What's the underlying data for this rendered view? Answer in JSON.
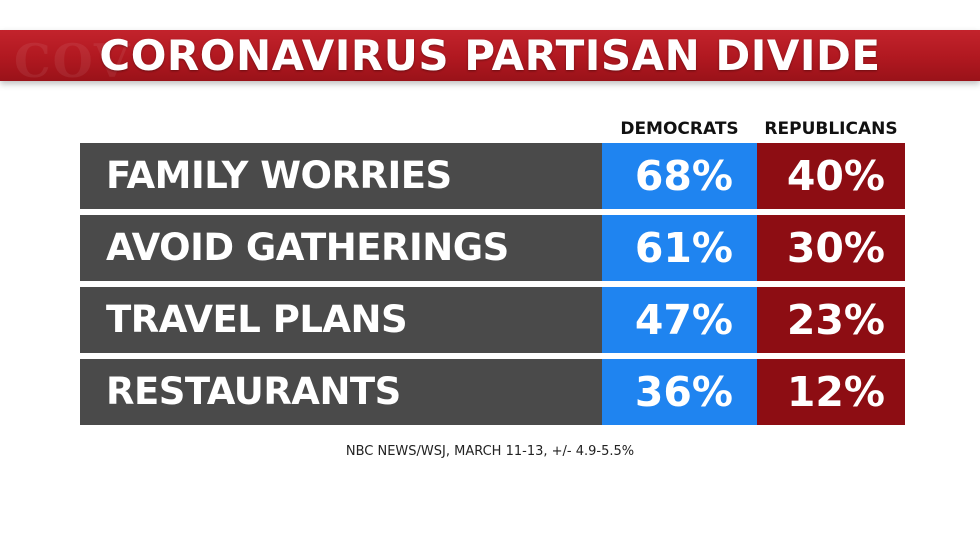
{
  "title": "CORONAVIRUS PARTISAN DIVIDE",
  "banner_ghost": "COV",
  "source": "NBC NEWS/WSJ, MARCH 11-13, +/- 4.9-5.5%",
  "colors": {
    "banner": "#b01820",
    "democrats": "#1f84f0",
    "republicans": "#8d0d13",
    "label_bg": "#4a4a4a"
  },
  "chart_data": {
    "type": "table",
    "title": "CORONAVIRUS PARTISAN DIVIDE",
    "columns": [
      "DEMOCRATS",
      "REPUBLICANS"
    ],
    "rows": [
      {
        "label": "FAMILY WORRIES",
        "democrats": "68%",
        "republicans": "40%"
      },
      {
        "label": "AVOID GATHERINGS",
        "democrats": "61%",
        "republicans": "30%"
      },
      {
        "label": "TRAVEL PLANS",
        "democrats": "47%",
        "republicans": "23%"
      },
      {
        "label": "RESTAURANTS",
        "democrats": "36%",
        "republicans": "12%"
      }
    ],
    "series": [
      {
        "name": "DEMOCRATS",
        "values": [
          68,
          61,
          47,
          36
        ]
      },
      {
        "name": "REPUBLICANS",
        "values": [
          40,
          30,
          23,
          12
        ]
      }
    ],
    "categories": [
      "FAMILY WORRIES",
      "AVOID GATHERINGS",
      "TRAVEL PLANS",
      "RESTAURANTS"
    ],
    "source": "NBC NEWS/WSJ, MARCH 11-13, +/- 4.9-5.5%"
  }
}
